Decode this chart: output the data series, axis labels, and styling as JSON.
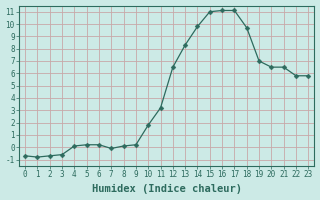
{
  "x": [
    0,
    1,
    2,
    3,
    4,
    5,
    6,
    7,
    8,
    9,
    10,
    11,
    12,
    13,
    14,
    15,
    16,
    17,
    18,
    19,
    20,
    21,
    22,
    23
  ],
  "y": [
    -0.7,
    -0.8,
    -0.7,
    -0.6,
    0.1,
    0.2,
    0.2,
    -0.1,
    0.1,
    0.2,
    1.8,
    3.2,
    6.5,
    8.3,
    9.8,
    11.0,
    11.1,
    11.1,
    9.7,
    7.0,
    6.5,
    6.5,
    5.8,
    5.8
  ],
  "line_color": "#2d6b5e",
  "marker": "D",
  "marker_size": 2.5,
  "bg_color": "#cceae6",
  "grid_color_major": "#b8d8d3",
  "grid_color_minor": "#e8f5f3",
  "xlabel": "Humidex (Indice chaleur)",
  "xlim": [
    -0.5,
    23.5
  ],
  "ylim": [
    -1.5,
    11.5
  ],
  "xticks": [
    0,
    1,
    2,
    3,
    4,
    5,
    6,
    7,
    8,
    9,
    10,
    11,
    12,
    13,
    14,
    15,
    16,
    17,
    18,
    19,
    20,
    21,
    22,
    23
  ],
  "yticks": [
    -1,
    0,
    1,
    2,
    3,
    4,
    5,
    6,
    7,
    8,
    9,
    10,
    11
  ],
  "tick_color": "#2d6b5e",
  "tick_fontsize": 5.5,
  "xlabel_fontsize": 7.5
}
